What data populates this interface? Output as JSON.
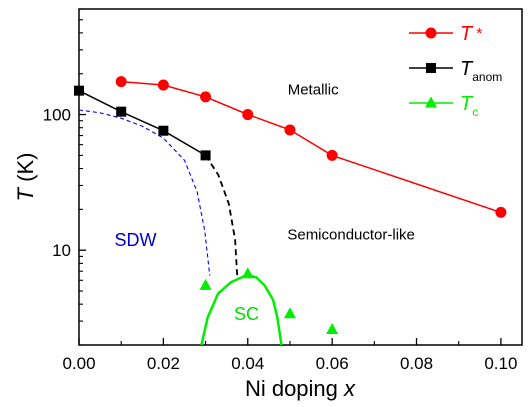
{
  "chart_data": {
    "type": "scatter",
    "xlim": [
      0,
      0.105
    ],
    "ylim": [
      2,
      600
    ],
    "yscale": "log",
    "x_ticks": [
      0.0,
      0.02,
      0.04,
      0.06,
      0.08,
      0.1
    ],
    "x_tick_labels": [
      "0.00",
      "0.02",
      "0.04",
      "0.06",
      "0.08",
      "0.10"
    ],
    "y_ticks": [
      10,
      100
    ],
    "y_tick_labels": [
      "10",
      "100"
    ],
    "xlabel": {
      "main": "Ni doping ",
      "var": "x"
    },
    "ylabel": {
      "var": "T",
      "unit": " (K)"
    },
    "grid": false,
    "legend_position": "top-right",
    "series": [
      {
        "key": "tstar",
        "legend": {
          "main": "T",
          "sup": " *"
        },
        "color": "#ff0000",
        "marker": "circle",
        "connect": true,
        "x": [
          0.01,
          0.02,
          0.03,
          0.04,
          0.05,
          0.06,
          0.1
        ],
        "y": [
          175,
          165,
          135,
          100,
          77,
          50,
          19
        ]
      },
      {
        "key": "tanom",
        "legend": {
          "main": "T",
          "sub": "anom"
        },
        "color": "#000000",
        "marker": "square",
        "connect": true,
        "x": [
          0.0,
          0.01,
          0.02,
          0.03
        ],
        "y": [
          150,
          105,
          76,
          50
        ]
      },
      {
        "key": "tc",
        "legend": {
          "main": "T",
          "sub": "c"
        },
        "color": "#00ee00",
        "marker": "triangle",
        "connect": false,
        "x": [
          0.03,
          0.04,
          0.05,
          0.06
        ],
        "y": [
          5.5,
          6.7,
          3.4,
          2.6
        ]
      }
    ],
    "boundary_lines": [
      {
        "key": "sdw-boundary",
        "color": "#0000ff",
        "style": "dashed",
        "points": [
          [
            0.0,
            108
          ],
          [
            0.005,
            103
          ],
          [
            0.01,
            94
          ],
          [
            0.015,
            82
          ],
          [
            0.02,
            67
          ],
          [
            0.025,
            46
          ],
          [
            0.028,
            27
          ],
          [
            0.0298,
            14
          ],
          [
            0.031,
            6.5
          ]
        ]
      },
      {
        "key": "tanom-extension",
        "color": "#000000",
        "style": "dashed",
        "points": [
          [
            0.03,
            50
          ],
          [
            0.033,
            36
          ],
          [
            0.0355,
            22
          ],
          [
            0.037,
            12
          ],
          [
            0.0375,
            6.5
          ]
        ]
      },
      {
        "key": "sc-dome",
        "color": "#00ee00",
        "style": "solid",
        "points": [
          [
            0.029,
            2
          ],
          [
            0.0305,
            3.2
          ],
          [
            0.033,
            4.8
          ],
          [
            0.036,
            5.8
          ],
          [
            0.039,
            6.4
          ],
          [
            0.0405,
            6.5
          ],
          [
            0.042,
            6.3
          ],
          [
            0.044,
            5.5
          ],
          [
            0.046,
            4.3
          ],
          [
            0.047,
            3.2
          ],
          [
            0.048,
            2
          ]
        ]
      }
    ],
    "annotations": [
      {
        "key": "metallic",
        "text": "Metallic",
        "x": 0.0555,
        "y": 140,
        "color": "#000000",
        "size": 15
      },
      {
        "key": "semiconductor",
        "text": "Semiconductor-like",
        "x": 0.0645,
        "y": 12,
        "color": "#000000",
        "size": 15
      },
      {
        "key": "sdw",
        "text": "SDW",
        "x": 0.0134,
        "y": 10.7,
        "color": "#0000cc",
        "size": 18
      },
      {
        "key": "sc",
        "text": "SC",
        "x": 0.0397,
        "y": 3.05,
        "color": "#00dd00",
        "size": 18
      }
    ]
  }
}
